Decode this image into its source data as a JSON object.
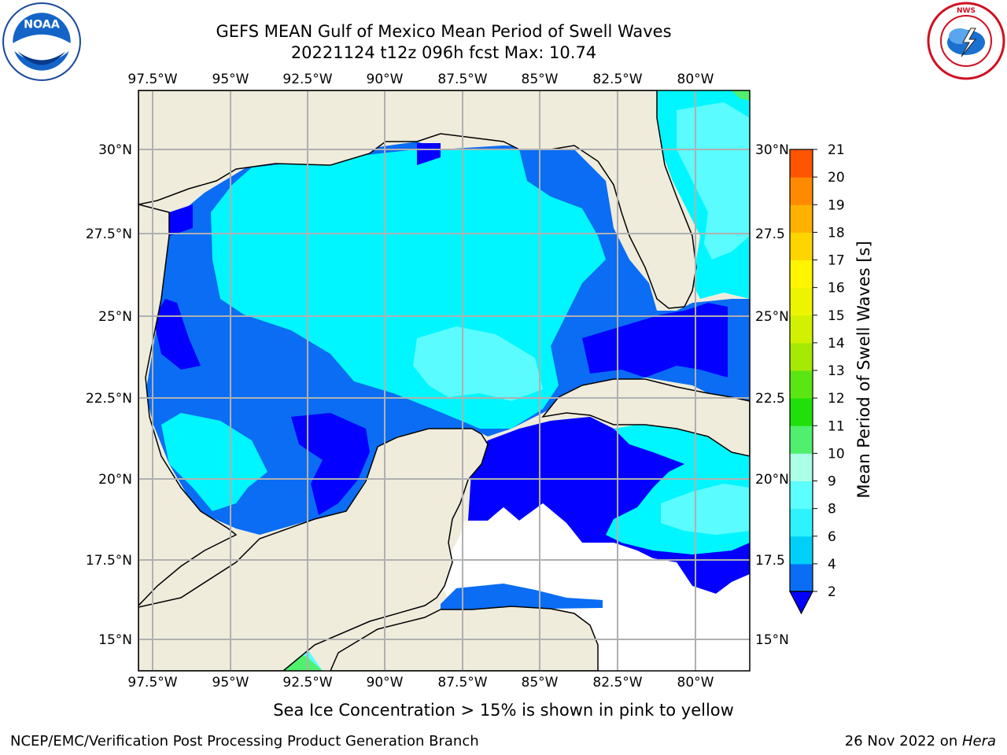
{
  "title_line1": "GEFS MEAN Gulf of Mexico Mean Period of Swell Waves",
  "title_line2": "20221124 t12z 096h fcst   Max: 10.74",
  "logos": {
    "left": "NOAA",
    "right": "NATIONAL WEATHER SERVICE"
  },
  "longitude_labels": [
    "97.5°W",
    "95°W",
    "92.5°W",
    "90°W",
    "87.5°W",
    "85°W",
    "82.5°W",
    "80°W"
  ],
  "latitude_labels_left": [
    "30°N",
    "27.5°N",
    "25°N",
    "22.5°N",
    "20°N",
    "17.5°N",
    "15°N"
  ],
  "latitude_labels_right": [
    "30°N",
    "27.5",
    "25°N",
    "22.5",
    "20°N",
    "17.5",
    "15°N"
  ],
  "colorbar": {
    "label": "Mean Period of Swell Waves [s]",
    "ticks": [
      "2",
      "4",
      "6",
      "8",
      "9",
      "10",
      "11",
      "12",
      "13",
      "14",
      "15",
      "16",
      "17",
      "18",
      "19",
      "20",
      "21"
    ],
    "colors": [
      "#0a6df4",
      "#00d0f8",
      "#2ef3ff",
      "#5cffff",
      "#aaffe6",
      "#50f06e",
      "#20e00a",
      "#5ae612",
      "#a4ea05",
      "#d2f100",
      "#eef400",
      "#fff500",
      "#ffd500",
      "#ffb100",
      "#ff8a00",
      "#ff5400",
      "#ff2000"
    ],
    "underflow_color": "#0400ff"
  },
  "colors": {
    "land": "#efecdc",
    "deep_blue": "#0400ff",
    "blue": "#0a6df4",
    "cyan": "#00f6ff",
    "light_cyan": "#5afcff",
    "pale_cyan": "#aafff0",
    "green": "#50f06e",
    "bright_green": "#20e00a"
  },
  "ice_note": "Sea Ice Concentration > 15% is shown in pink to yellow",
  "footer_left": "NCEP/EMC/Verification Post Processing Product Generation Branch",
  "footer_right_prefix": "26 Nov 2022 on ",
  "footer_right_host": "Hera"
}
